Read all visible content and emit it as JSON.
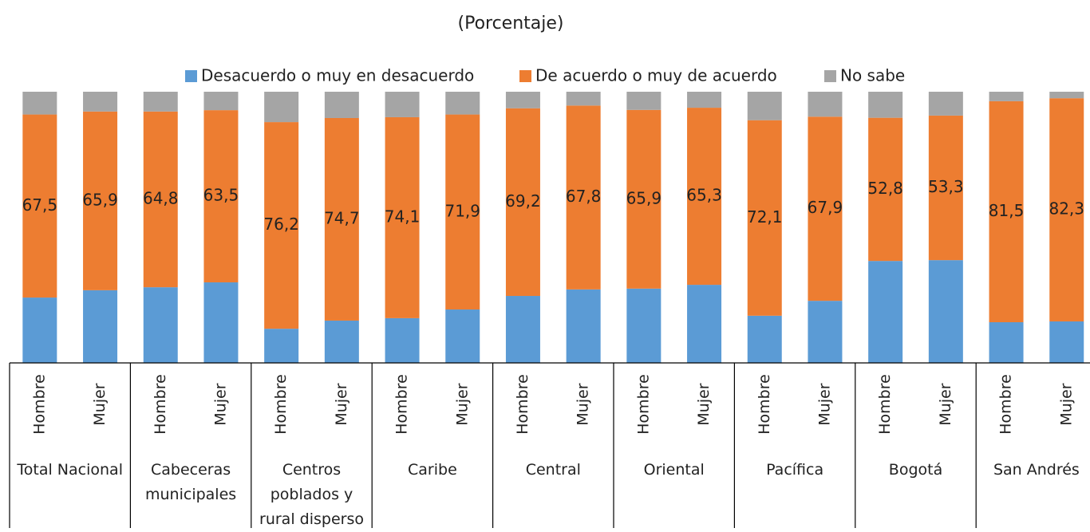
{
  "chart_data": {
    "type": "stacked-bar",
    "title": "(Porcentaje)",
    "categories": [
      "Hombre",
      "Mujer",
      "Hombre",
      "Mujer",
      "Hombre",
      "Mujer",
      "Hombre",
      "Mujer",
      "Hombre",
      "Mujer",
      "Hombre",
      "Mujer",
      "Hombre",
      "Mujer",
      "Hombre",
      "Mujer",
      "Hombre",
      "Mujer"
    ],
    "groups": [
      "Total Nacional",
      "Cabeceras municipales",
      "Centros poblados y rural disperso",
      "Caribe",
      "Central",
      "Oriental",
      "Pacífica",
      "Bogotá",
      "San Andrés"
    ],
    "series": [
      {
        "name": "Desacuerdo o muy en desacuerdo",
        "color": "#5b9bd5",
        "values": [
          24.1,
          26.8,
          27.9,
          29.7,
          12.6,
          15.6,
          16.5,
          19.7,
          24.7,
          27.1,
          27.4,
          28.8,
          17.4,
          22.9,
          37.6,
          37.9,
          15.0,
          15.3
        ]
      },
      {
        "name": "De acuerdo o muy de acuerdo",
        "color": "#ed7d31",
        "values": [
          67.5,
          65.9,
          64.8,
          63.5,
          76.2,
          74.7,
          74.1,
          71.9,
          69.2,
          67.8,
          65.9,
          65.3,
          72.1,
          67.9,
          52.8,
          53.3,
          81.5,
          82.3
        ],
        "value_labels": [
          "67,5",
          "65,9",
          "64,8",
          "63,5",
          "76,2",
          "74,7",
          "74,1",
          "71,9",
          "69,2",
          "67,8",
          "65,9",
          "65,3",
          "72,1",
          "67,9",
          "52,8",
          "53,3",
          "81,5",
          "82,3"
        ]
      },
      {
        "name": "No sabe",
        "color": "#a5a5a5",
        "values": [
          8.4,
          7.3,
          7.3,
          6.8,
          11.2,
          9.7,
          9.4,
          8.4,
          6.1,
          5.1,
          6.7,
          5.9,
          10.5,
          9.2,
          9.6,
          8.8,
          3.5,
          2.4
        ]
      }
    ]
  }
}
